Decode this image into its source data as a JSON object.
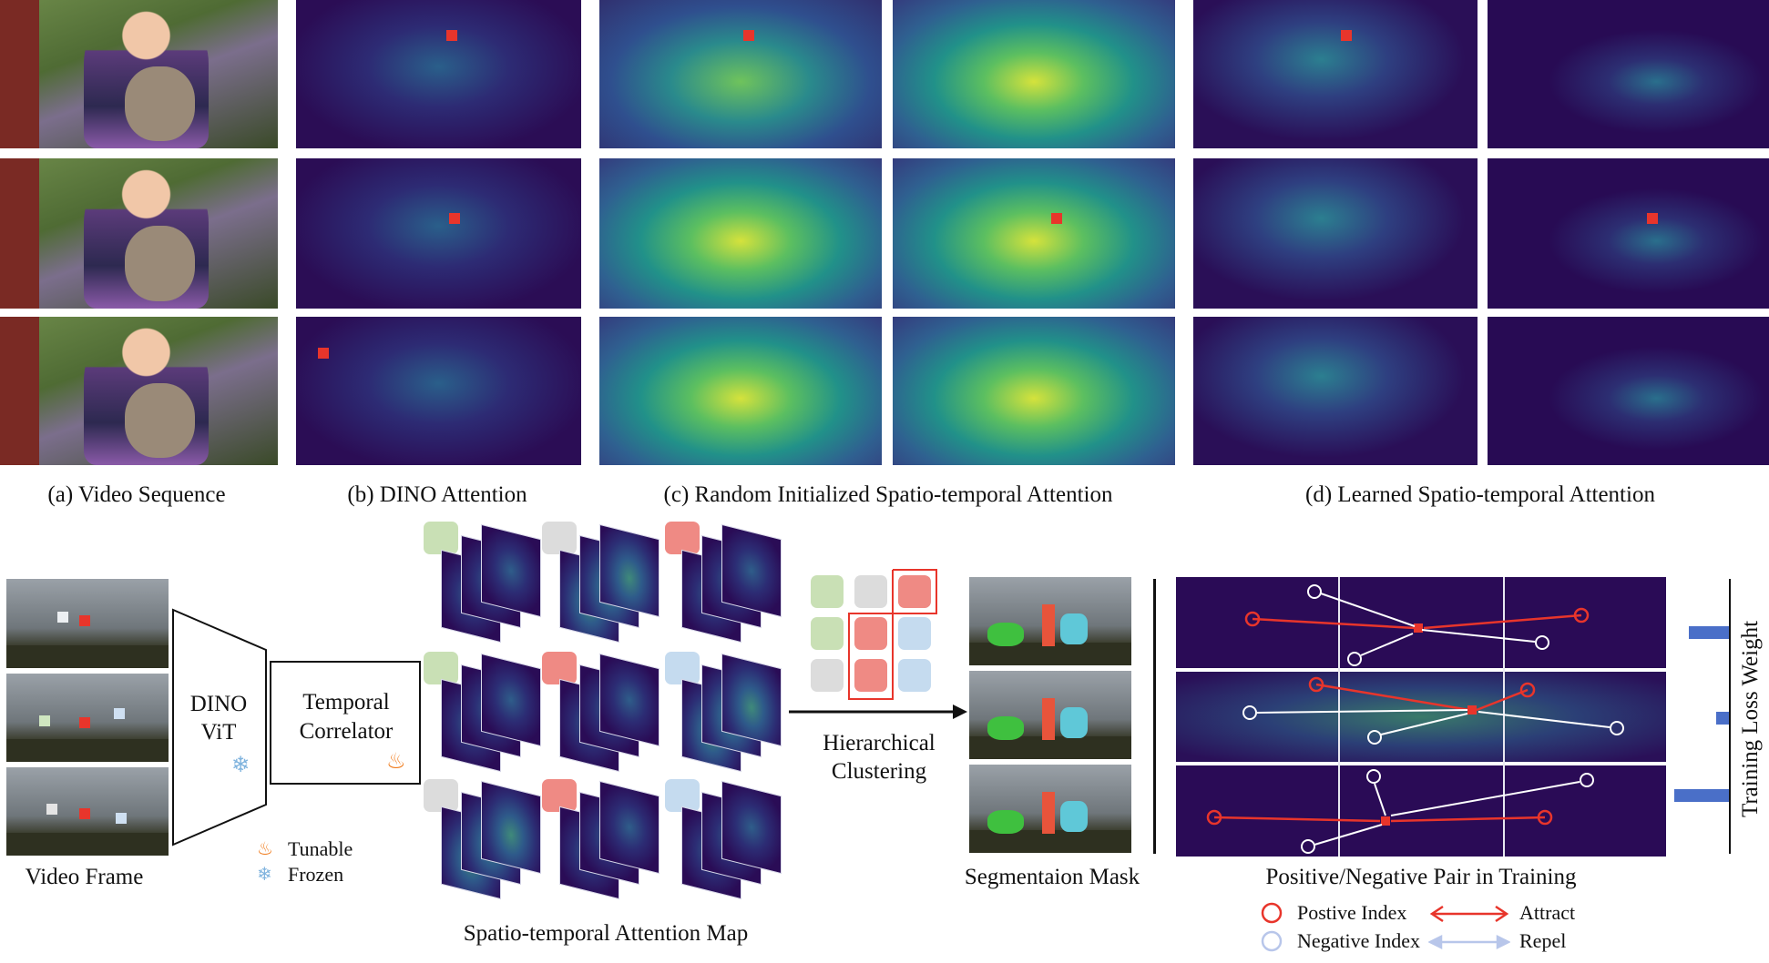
{
  "captions": {
    "a": "(a) Video Sequence",
    "b": "(b) DINO Attention",
    "c": "(c) Random Initialized Spatio-temporal Attention",
    "d": "(d) Learned Spatio-temporal Attention"
  },
  "pipeline": {
    "video_frame_label": "Video Frame",
    "dino_label_line1": "DINO",
    "dino_label_line2": "ViT",
    "correlator_line1": "Temporal",
    "correlator_line2": "Correlator",
    "legend_tunable": "Tunable",
    "legend_frozen": "Frozen",
    "attention_map_label": "Spatio-temporal Attention Map",
    "clustering_line1": "Hierarchical",
    "clustering_line2": "Clustering",
    "segmentation_label": "Segmentaion Mask"
  },
  "training": {
    "title": "Positive/Negative Pair in Training",
    "loss_axis_label": "Training Loss Weight",
    "legend": {
      "positive": "Postive Index",
      "negative": "Negative Index",
      "attract": "Attract",
      "repel": "Repel"
    },
    "colors": {
      "attract": "#e8352b",
      "repel": "#b8c6ea",
      "weight_bar": "#4a6fc8"
    },
    "loss_weights": [
      0.55,
      0.18,
      0.7
    ]
  },
  "icons": {
    "tunable": "flame-icon",
    "frozen": "snowflake-icon"
  }
}
